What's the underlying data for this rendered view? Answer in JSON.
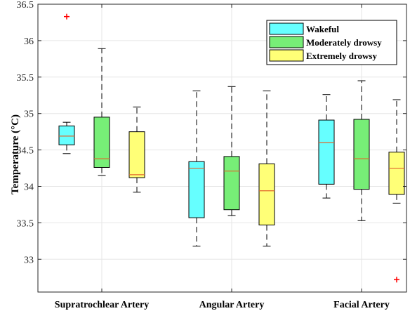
{
  "chart_data": {
    "type": "boxplot",
    "categories": [
      "Supratrochlear Artery",
      "Angular Artery",
      "Facial Artery"
    ],
    "ylabel": "Temperature (°C)",
    "ylim": [
      32.55,
      36.5
    ],
    "yticks": [
      33,
      33.5,
      34,
      34.5,
      35,
      35.5,
      36,
      36.5
    ],
    "ytick_labels": [
      "33",
      "33.5",
      "34",
      "34.5",
      "35",
      "35.5",
      "36",
      "36.5"
    ],
    "grid": true,
    "legend_position": "top-right",
    "series": [
      {
        "name": "Wakeful",
        "color": "#66ffff",
        "boxes": [
          {
            "whisker_low": 34.45,
            "q1": 34.57,
            "median": 34.69,
            "q3": 34.83,
            "whisker_high": 34.88,
            "outliers": [
              36.33
            ]
          },
          {
            "whisker_low": 33.18,
            "q1": 33.57,
            "median": 34.25,
            "q3": 34.34,
            "whisker_high": 35.31,
            "outliers": []
          },
          {
            "whisker_low": 33.84,
            "q1": 34.03,
            "median": 34.6,
            "q3": 34.91,
            "whisker_high": 35.26,
            "outliers": []
          }
        ]
      },
      {
        "name": "Moderately drowsy",
        "color": "#77ee77",
        "boxes": [
          {
            "whisker_low": 34.15,
            "q1": 34.26,
            "median": 34.38,
            "q3": 34.95,
            "whisker_high": 35.89,
            "outliers": []
          },
          {
            "whisker_low": 33.6,
            "q1": 33.68,
            "median": 34.21,
            "q3": 34.41,
            "whisker_high": 35.37,
            "outliers": []
          },
          {
            "whisker_low": 33.53,
            "q1": 33.96,
            "median": 34.38,
            "q3": 34.92,
            "whisker_high": 35.45,
            "outliers": []
          }
        ]
      },
      {
        "name": "Extremely drowsy",
        "color": "#ffff77",
        "boxes": [
          {
            "whisker_low": 33.92,
            "q1": 34.12,
            "median": 34.16,
            "q3": 34.75,
            "whisker_high": 35.09,
            "outliers": []
          },
          {
            "whisker_low": 33.18,
            "q1": 33.47,
            "median": 33.94,
            "q3": 34.31,
            "whisker_high": 35.31,
            "outliers": []
          },
          {
            "whisker_low": 33.77,
            "q1": 33.89,
            "median": 34.25,
            "q3": 34.47,
            "whisker_high": 35.19,
            "outliers": [
              32.72
            ]
          }
        ]
      }
    ]
  },
  "colors": {
    "median": "#e0662e",
    "outlier": "#ff0000",
    "grid": "#e6e6e6",
    "axis": "#262626"
  }
}
